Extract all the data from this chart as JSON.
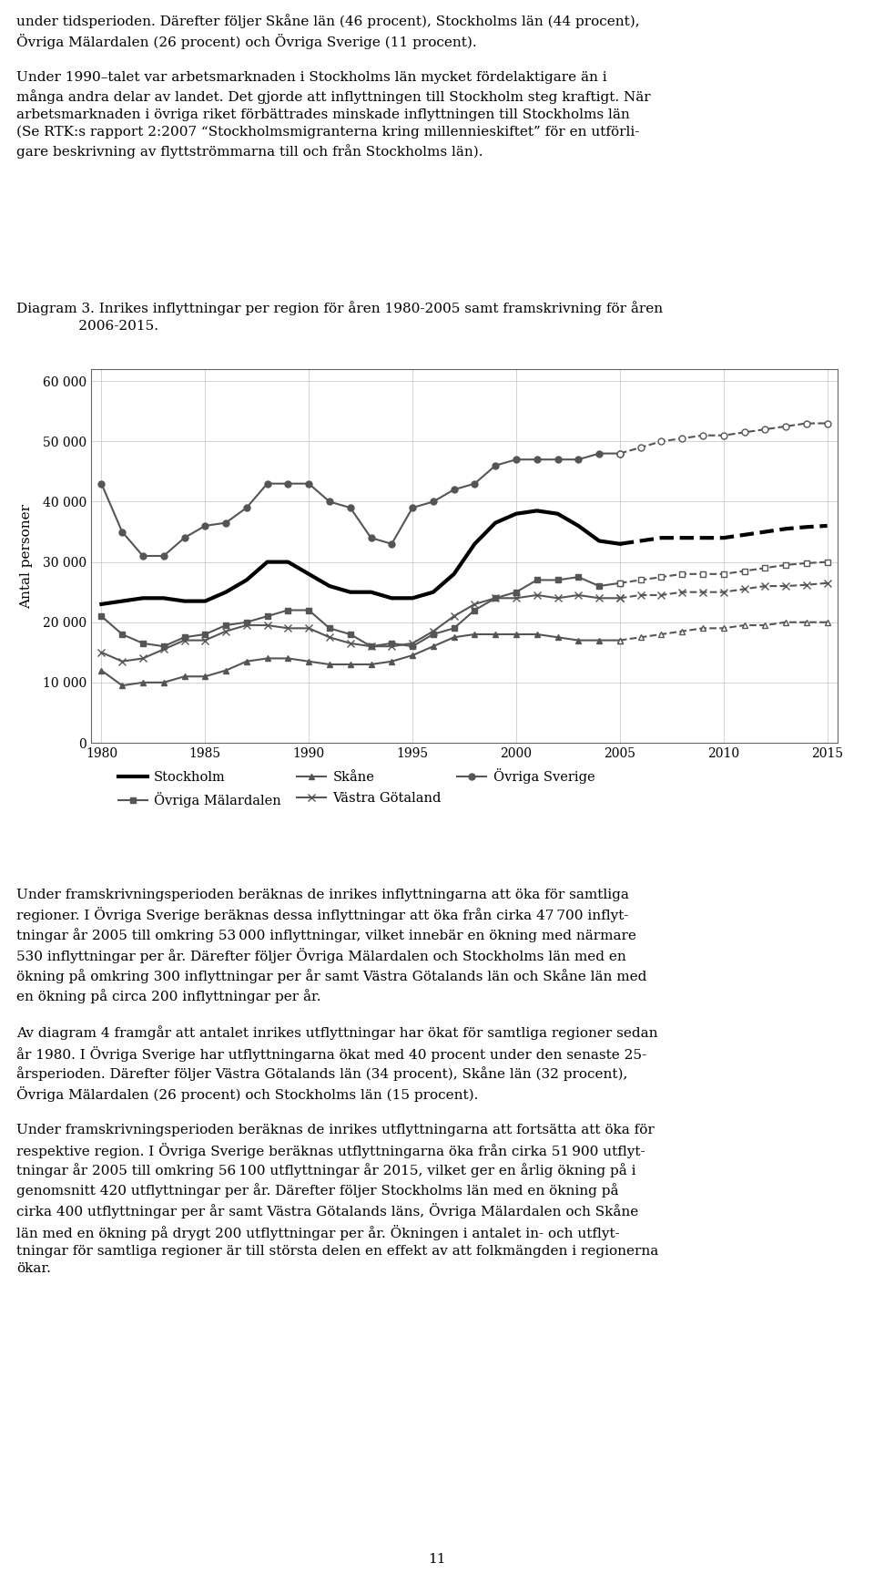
{
  "ylabel": "Antal personer",
  "xlim": [
    1979.5,
    2015.5
  ],
  "ylim": [
    0,
    62000
  ],
  "yticks": [
    0,
    10000,
    20000,
    30000,
    40000,
    50000,
    60000
  ],
  "ytick_labels": [
    "0",
    "10 000",
    "20 000",
    "30 000",
    "40 000",
    "50 000",
    "60 000"
  ],
  "xticks": [
    1980,
    1985,
    1990,
    1995,
    2000,
    2005,
    2010,
    2015
  ],
  "page_number": "11",
  "series": {
    "Stockholm": {
      "years_actual": [
        1980,
        1981,
        1982,
        1983,
        1984,
        1985,
        1986,
        1987,
        1988,
        1989,
        1990,
        1991,
        1992,
        1993,
        1994,
        1995,
        1996,
        1997,
        1998,
        1999,
        2000,
        2001,
        2002,
        2003,
        2004,
        2005
      ],
      "values_actual": [
        23000,
        23500,
        24000,
        24000,
        23500,
        23500,
        25000,
        27000,
        30000,
        30000,
        28000,
        26000,
        25000,
        25000,
        24000,
        24000,
        25000,
        28000,
        33000,
        36500,
        38000,
        38500,
        38000,
        36000,
        33500,
        33000
      ],
      "years_proj": [
        2005,
        2006,
        2007,
        2008,
        2009,
        2010,
        2011,
        2012,
        2013,
        2014,
        2015
      ],
      "values_proj": [
        33000,
        33500,
        34000,
        34000,
        34000,
        34000,
        34500,
        35000,
        35500,
        35800,
        36000
      ],
      "color": "#000000",
      "linewidth": 3.0,
      "marker": null,
      "markersize": 0
    },
    "Ovriga_Malardalen": {
      "years_actual": [
        1980,
        1981,
        1982,
        1983,
        1984,
        1985,
        1986,
        1987,
        1988,
        1989,
        1990,
        1991,
        1992,
        1993,
        1994,
        1995,
        1996,
        1997,
        1998,
        1999,
        2000,
        2001,
        2002,
        2003,
        2004,
        2005
      ],
      "values_actual": [
        21000,
        18000,
        16500,
        16000,
        17500,
        18000,
        19500,
        20000,
        21000,
        22000,
        22000,
        19000,
        18000,
        16000,
        16500,
        16000,
        18000,
        19000,
        22000,
        24000,
        25000,
        27000,
        27000,
        27500,
        26000,
        26500
      ],
      "years_proj": [
        2005,
        2006,
        2007,
        2008,
        2009,
        2010,
        2011,
        2012,
        2013,
        2014,
        2015
      ],
      "values_proj": [
        26500,
        27000,
        27500,
        28000,
        28000,
        28000,
        28500,
        29000,
        29500,
        29800,
        30000
      ],
      "color": "#555555",
      "linewidth": 1.5,
      "marker": "s",
      "markersize": 5
    },
    "Skane": {
      "years_actual": [
        1980,
        1981,
        1982,
        1983,
        1984,
        1985,
        1986,
        1987,
        1988,
        1989,
        1990,
        1991,
        1992,
        1993,
        1994,
        1995,
        1996,
        1997,
        1998,
        1999,
        2000,
        2001,
        2002,
        2003,
        2004,
        2005
      ],
      "values_actual": [
        12000,
        9500,
        10000,
        10000,
        11000,
        11000,
        12000,
        13500,
        14000,
        14000,
        13500,
        13000,
        13000,
        13000,
        13500,
        14500,
        16000,
        17500,
        18000,
        18000,
        18000,
        18000,
        17500,
        17000,
        17000,
        17000
      ],
      "years_proj": [
        2005,
        2006,
        2007,
        2008,
        2009,
        2010,
        2011,
        2012,
        2013,
        2014,
        2015
      ],
      "values_proj": [
        17000,
        17500,
        18000,
        18500,
        19000,
        19000,
        19500,
        19500,
        20000,
        20000,
        20000
      ],
      "color": "#555555",
      "linewidth": 1.5,
      "marker": "^",
      "markersize": 5
    },
    "Vastra_Gotaland": {
      "years_actual": [
        1980,
        1981,
        1982,
        1983,
        1984,
        1985,
        1986,
        1987,
        1988,
        1989,
        1990,
        1991,
        1992,
        1993,
        1994,
        1995,
        1996,
        1997,
        1998,
        1999,
        2000,
        2001,
        2002,
        2003,
        2004,
        2005
      ],
      "values_actual": [
        15000,
        13500,
        14000,
        15500,
        17000,
        17000,
        18500,
        19500,
        19500,
        19000,
        19000,
        17500,
        16500,
        16000,
        16000,
        16500,
        18500,
        21000,
        23000,
        24000,
        24000,
        24500,
        24000,
        24500,
        24000,
        24000
      ],
      "years_proj": [
        2005,
        2006,
        2007,
        2008,
        2009,
        2010,
        2011,
        2012,
        2013,
        2014,
        2015
      ],
      "values_proj": [
        24000,
        24500,
        24500,
        25000,
        25000,
        25000,
        25500,
        26000,
        26000,
        26200,
        26500
      ],
      "color": "#555555",
      "linewidth": 1.5,
      "marker": "x",
      "markersize": 6
    },
    "Ovriga_Sverige": {
      "years_actual": [
        1980,
        1981,
        1982,
        1983,
        1984,
        1985,
        1986,
        1987,
        1988,
        1989,
        1990,
        1991,
        1992,
        1993,
        1994,
        1995,
        1996,
        1997,
        1998,
        1999,
        2000,
        2001,
        2002,
        2003,
        2004,
        2005
      ],
      "values_actual": [
        43000,
        35000,
        31000,
        31000,
        34000,
        36000,
        36500,
        39000,
        43000,
        43000,
        43000,
        40000,
        39000,
        34000,
        33000,
        39000,
        40000,
        42000,
        43000,
        46000,
        47000,
        47000,
        47000,
        47000,
        48000,
        48000
      ],
      "years_proj": [
        2005,
        2006,
        2007,
        2008,
        2009,
        2010,
        2011,
        2012,
        2013,
        2014,
        2015
      ],
      "values_proj": [
        48000,
        49000,
        50000,
        50500,
        51000,
        51000,
        51500,
        52000,
        52500,
        53000,
        53000
      ],
      "color": "#555555",
      "linewidth": 1.5,
      "marker": "o",
      "markersize": 5
    }
  }
}
